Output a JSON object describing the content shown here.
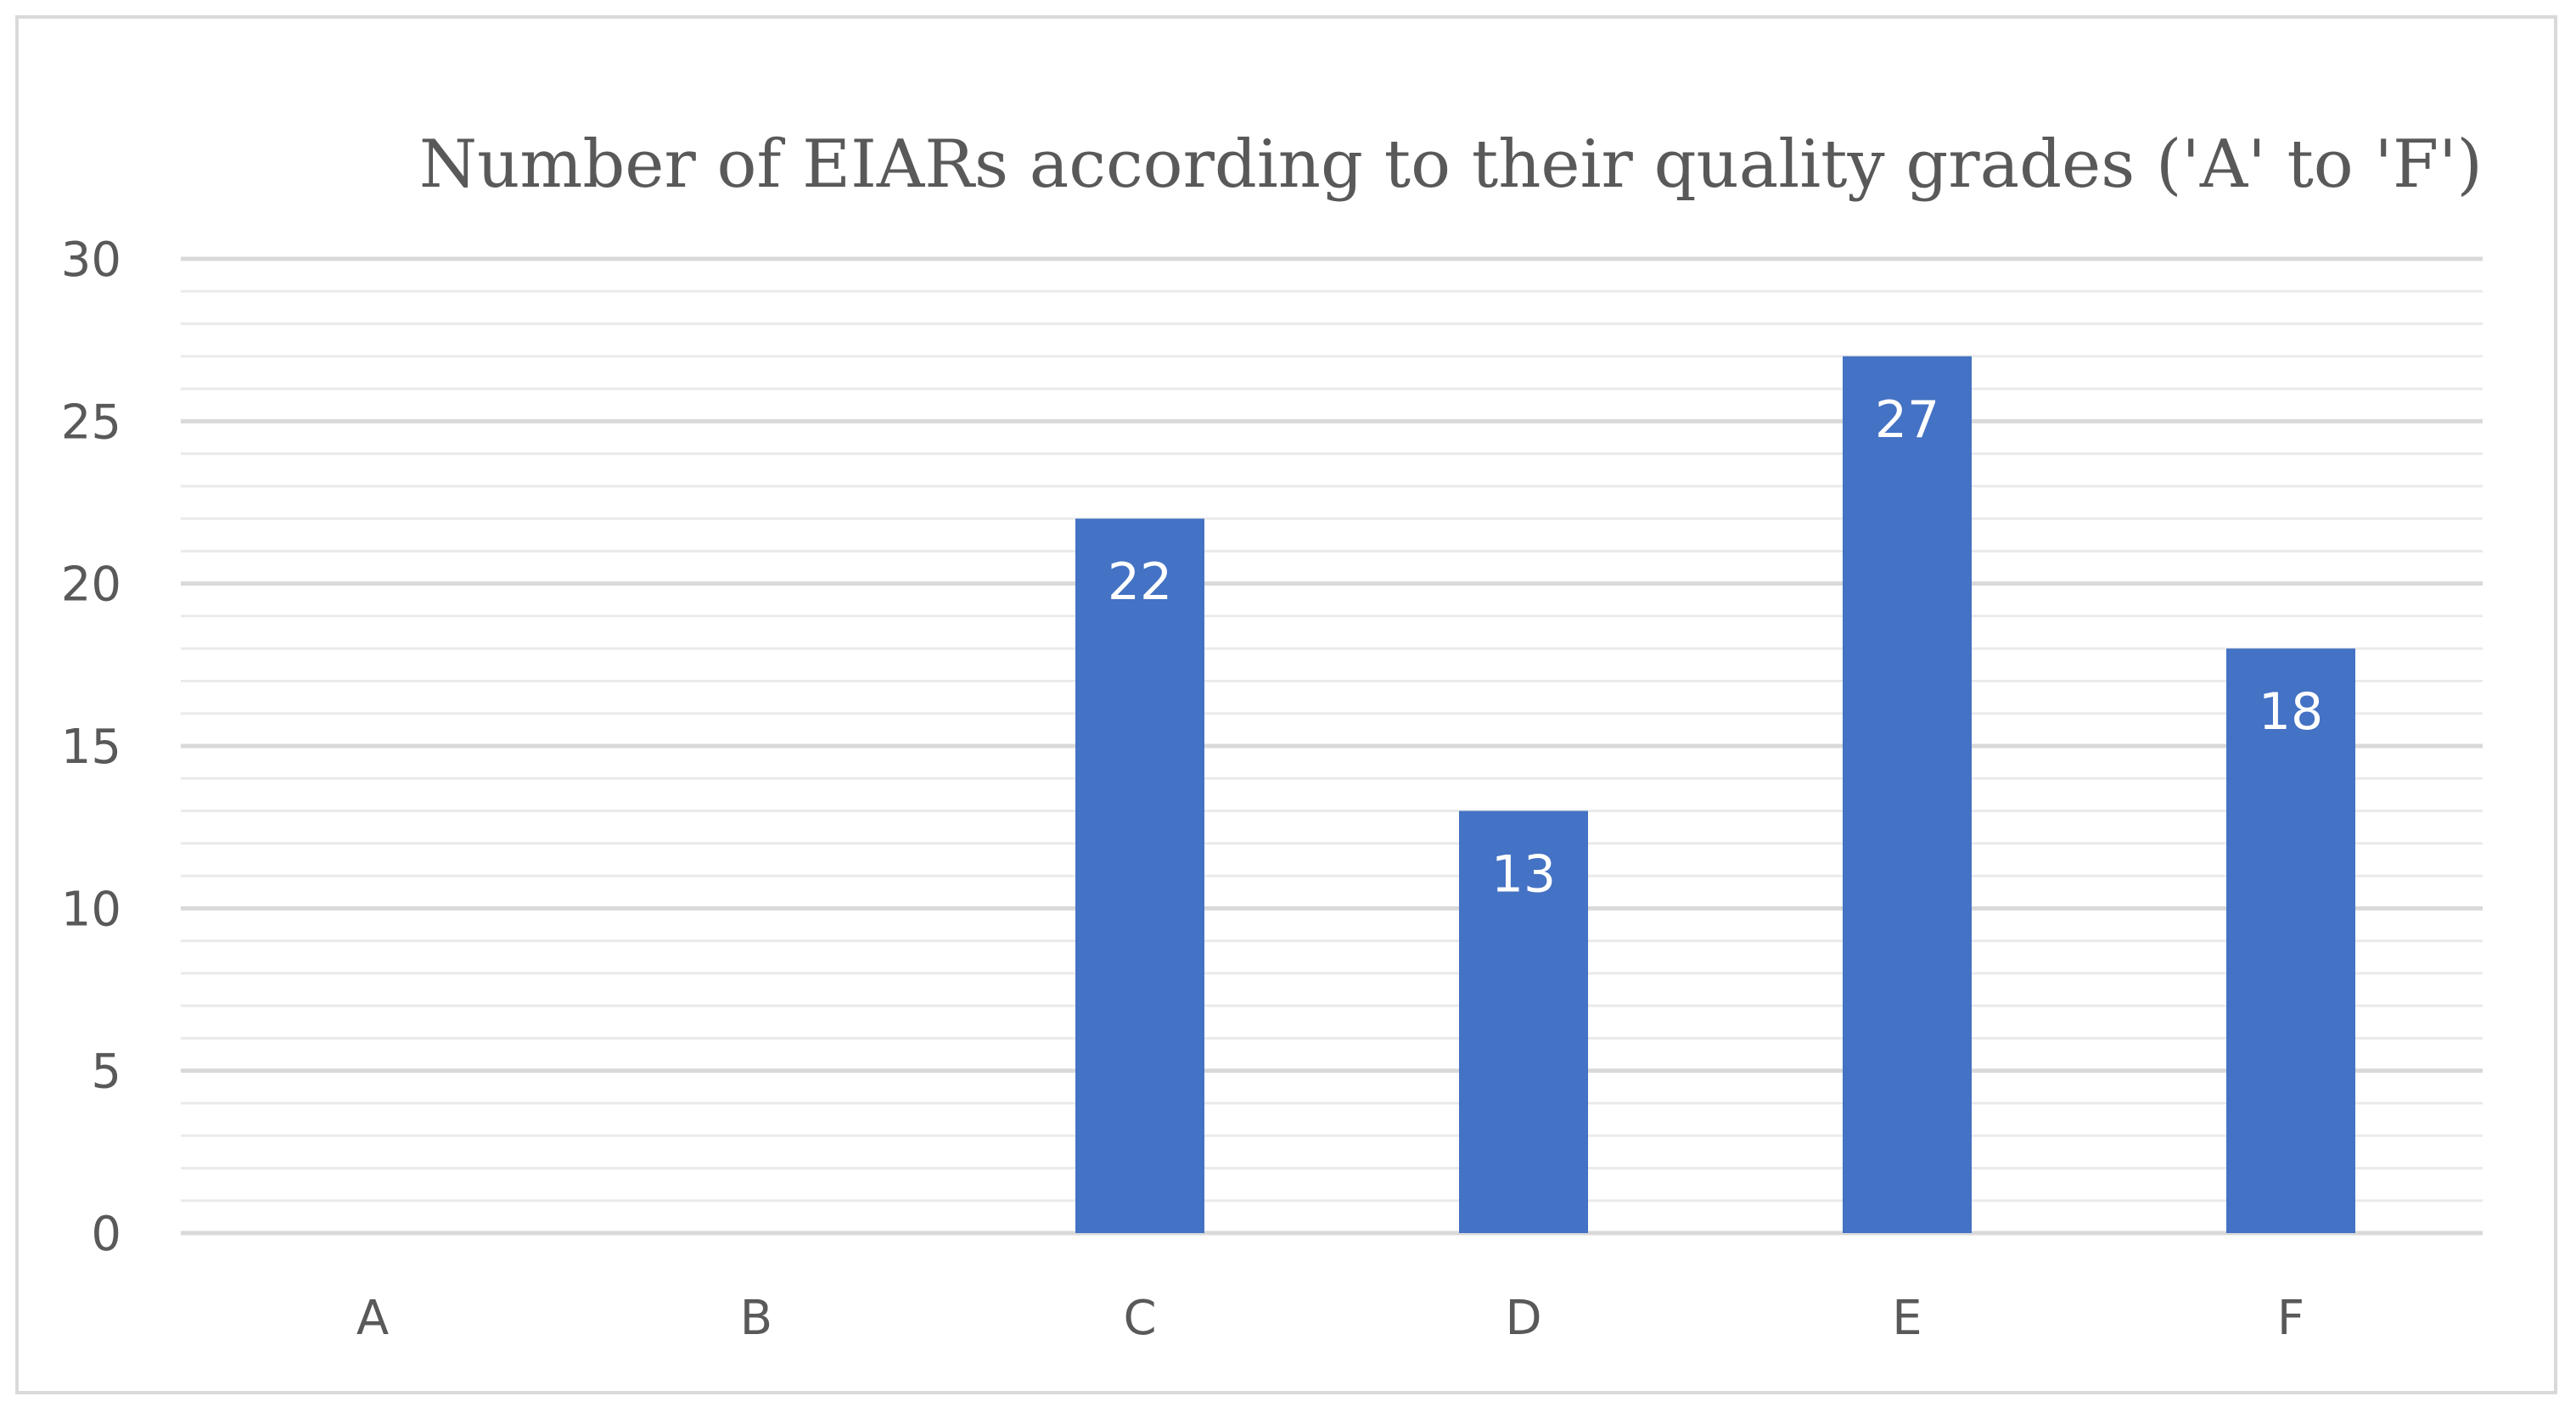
{
  "chart_data": {
    "type": "bar",
    "title": "Number of EIARs according to their quality  grades ('A' to 'F')",
    "categories": [
      "A",
      "B",
      "C",
      "D",
      "E",
      "F"
    ],
    "values": [
      0,
      0,
      22,
      13,
      27,
      18
    ],
    "data_labels": [
      "",
      "",
      "22",
      "13",
      "27",
      "18"
    ],
    "ylim": [
      0,
      30
    ],
    "yticks": [
      "0",
      "5",
      "10",
      "15",
      "20",
      "25",
      "30"
    ],
    "xlabel": "",
    "ylabel": "",
    "grid": true,
    "legend": "none",
    "bar_color": "#4472c4",
    "grid_color": "#d9d9d9"
  }
}
